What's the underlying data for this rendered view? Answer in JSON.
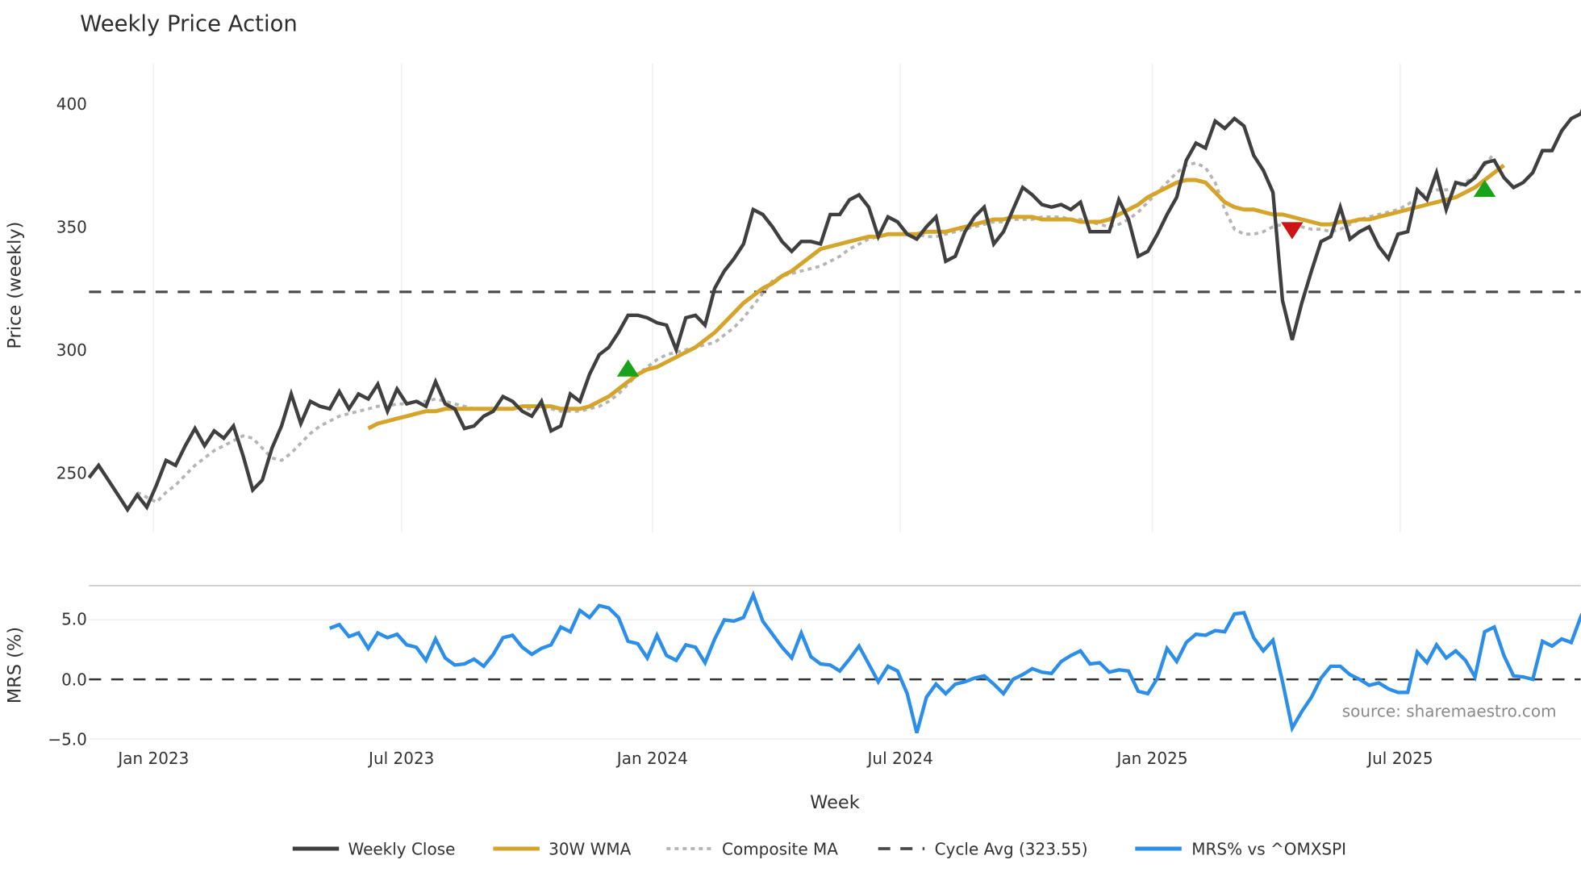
{
  "chart_data": [
    {
      "type": "line",
      "title": "Weekly Price Action",
      "xlabel": "Week",
      "ylabel": "Price (weekly)",
      "ylim": [
        222,
        417
      ],
      "yticks": [
        250,
        300,
        350,
        400
      ],
      "xticks": [
        "Jan 2023",
        "Jul 2023",
        "Jan 2024",
        "Jul 2024",
        "Jan 2025",
        "Jul 2025"
      ],
      "grid": "vertical",
      "series": [
        {
          "name": "Weekly Close",
          "color": "#3f3f3f",
          "style": "solid",
          "values": [
            248,
            253,
            247,
            241,
            235,
            241,
            236,
            245,
            255,
            253,
            261,
            268,
            261,
            267,
            264,
            269,
            257,
            243,
            247,
            260,
            269,
            282,
            270,
            279,
            277,
            276,
            283,
            276,
            282,
            280,
            286,
            275,
            284,
            278,
            279,
            277,
            287,
            278,
            276,
            268,
            269,
            273,
            275,
            281,
            279,
            275,
            273,
            279,
            267,
            269,
            282,
            279,
            290,
            298,
            301,
            307,
            314,
            314,
            313,
            311,
            310,
            300,
            313,
            314,
            310,
            325,
            332,
            337,
            343,
            357,
            355,
            350,
            344,
            340,
            344,
            344,
            343,
            355,
            355,
            361,
            363,
            358,
            346,
            354,
            352,
            347,
            345,
            350,
            354,
            336,
            338,
            348,
            354,
            358,
            343,
            348,
            357,
            366,
            363,
            359,
            358,
            359,
            357,
            360,
            348,
            348,
            348,
            361,
            353,
            338,
            340,
            347,
            355,
            362,
            377,
            384,
            382,
            393,
            390,
            394,
            391,
            379,
            373,
            364,
            320,
            304,
            319,
            332,
            344,
            346,
            358,
            345,
            348,
            350,
            342,
            337,
            347,
            348,
            365,
            361,
            372,
            357,
            368,
            367,
            370,
            376,
            377,
            370,
            366,
            368,
            372,
            381,
            381,
            389,
            394,
            396,
            406
          ]
        },
        {
          "name": "30W WMA",
          "color": "#d4a52a",
          "style": "solid",
          "start_index": 29,
          "values": [
            268,
            270,
            271,
            272,
            273,
            274,
            275,
            275,
            276,
            276,
            276,
            276,
            276,
            276,
            276,
            276,
            277,
            277,
            277,
            277,
            276,
            276,
            276,
            277,
            279,
            281,
            284,
            287,
            290,
            292,
            293,
            295,
            297,
            299,
            301,
            304,
            307,
            311,
            315,
            319,
            322,
            325,
            327,
            330,
            332,
            335,
            338,
            341,
            342,
            343,
            344,
            345,
            346,
            346,
            347,
            347,
            347,
            347,
            348,
            348,
            348,
            349,
            350,
            351,
            352,
            353,
            353,
            354,
            354,
            354,
            353,
            353,
            353,
            353,
            352,
            352,
            352,
            353,
            355,
            357,
            359,
            362,
            364,
            366,
            368,
            369,
            369,
            368,
            364,
            360,
            358,
            357,
            357,
            356,
            355,
            355,
            354,
            353,
            352,
            351,
            351,
            352,
            352,
            353,
            353,
            354,
            355,
            356,
            357,
            358,
            359,
            360,
            361,
            362,
            364,
            366,
            369,
            372,
            375
          ]
        },
        {
          "name": "Composite MA",
          "color": "#b5b5b5",
          "style": "dotted",
          "start_index": 5,
          "values": [
            242,
            240,
            238,
            242,
            245,
            249,
            253,
            256,
            259,
            261,
            263,
            265,
            264,
            260,
            256,
            255,
            258,
            262,
            266,
            269,
            271,
            273,
            274,
            275,
            276,
            277,
            277,
            278,
            278,
            279,
            279,
            280,
            279,
            278,
            277,
            276,
            276,
            276,
            276,
            276,
            276,
            276,
            276,
            276,
            275,
            275,
            275,
            276,
            277,
            279,
            282,
            286,
            290,
            293,
            296,
            298,
            299,
            300,
            301,
            302,
            303,
            306,
            309,
            313,
            318,
            323,
            328,
            330,
            331,
            332,
            333,
            334,
            336,
            338,
            341,
            343,
            345,
            346,
            347,
            347,
            347,
            347,
            346,
            346,
            347,
            348,
            349,
            350,
            351,
            352,
            352,
            353,
            353,
            353,
            354,
            354,
            354,
            353,
            353,
            352,
            351,
            350,
            351,
            353,
            356,
            360,
            364,
            368,
            372,
            375,
            376,
            374,
            368,
            357,
            349,
            347,
            347,
            348,
            350,
            351,
            350,
            350,
            349,
            349,
            348,
            349,
            351,
            353,
            354,
            355,
            356,
            357,
            359,
            362,
            364,
            365,
            365,
            366,
            368,
            371,
            375,
            380
          ]
        },
        {
          "name": "Cycle Avg (323.55)",
          "color": "#4a4a4a",
          "style": "dashed",
          "value": 323.55
        }
      ],
      "annotations": [
        {
          "type": "buy-marker",
          "shape": "triangle-up",
          "color": "#1aa31a",
          "index": 56,
          "price": 292
        },
        {
          "type": "sell-marker",
          "shape": "triangle-down",
          "color": "#cc1414",
          "index": 125,
          "price": 349
        },
        {
          "type": "buy-marker",
          "shape": "triangle-up",
          "color": "#1aa31a",
          "index": 145,
          "price": 365
        }
      ]
    },
    {
      "type": "line",
      "title": "",
      "xlabel": "Week",
      "ylabel": "MRS (%)",
      "ylim": [
        -5.0,
        7.8
      ],
      "yticks": [
        -5.0,
        0.0,
        5.0
      ],
      "series": [
        {
          "name": "MRS% vs ^OMXSPI",
          "color": "#2b8ee8",
          "style": "solid",
          "start_index": 25,
          "values": [
            4.3,
            4.6,
            3.6,
            3.9,
            2.6,
            3.9,
            3.5,
            3.8,
            2.9,
            2.7,
            1.6,
            3.4,
            1.8,
            1.2,
            1.3,
            1.7,
            1.1,
            2.1,
            3.5,
            3.7,
            2.7,
            2.1,
            2.6,
            2.9,
            4.4,
            4.0,
            5.8,
            5.2,
            6.2,
            6.0,
            5.2,
            3.2,
            3.0,
            1.8,
            3.7,
            2.0,
            1.6,
            2.9,
            2.7,
            1.4,
            3.4,
            5.0,
            4.9,
            5.2,
            7.1,
            4.9,
            3.8,
            2.7,
            1.8,
            3.9,
            1.9,
            1.3,
            1.2,
            0.7,
            1.7,
            2.8,
            1.3,
            -0.2,
            1.1,
            0.7,
            -1.2,
            -4.5,
            -1.5,
            -0.4,
            -1.2,
            -0.4,
            -0.2,
            0.1,
            0.3,
            -0.4,
            -1.2,
            0.0,
            0.4,
            0.9,
            0.6,
            0.5,
            1.5,
            2.0,
            2.4,
            1.3,
            1.4,
            0.6,
            0.8,
            0.7,
            -1.0,
            -1.2,
            0.1,
            2.6,
            1.5,
            3.1,
            3.8,
            3.7,
            4.1,
            4.0,
            5.5,
            5.6,
            3.5,
            2.4,
            3.3,
            -0.2,
            -4.1,
            -2.7,
            -1.5,
            0.1,
            1.1,
            1.1,
            0.4,
            0.0,
            -0.5,
            -0.3,
            -0.8,
            -1.1,
            -1.1,
            2.3,
            1.4,
            2.9,
            1.8,
            2.4,
            1.6,
            0.2,
            4.0,
            4.4,
            2.0,
            0.3,
            0.2,
            0.0,
            3.2,
            2.8,
            3.4,
            3.1,
            5.3,
            6.8
          ]
        },
        {
          "name": "Zero line",
          "color": "#333333",
          "style": "dashed",
          "value": 0.0
        }
      ]
    }
  ],
  "header": {
    "title": "Weekly Price Action"
  },
  "price_panel": {
    "y_axis_title": "Price (weekly)",
    "y_ticks": [
      "250",
      "300",
      "350",
      "400"
    ]
  },
  "mrs_panel": {
    "y_axis_title": "MRS (%)",
    "y_ticks": [
      "−5.0",
      "0.0",
      "5.0"
    ],
    "source": "source: sharemaestro.com"
  },
  "x_axis": {
    "title": "Week",
    "ticks": [
      "Jan 2023",
      "Jul 2023",
      "Jan 2024",
      "Jul 2024",
      "Jan 2025",
      "Jul 2025"
    ]
  },
  "legend": {
    "items": [
      {
        "label": "Weekly Close",
        "color": "#3f3f3f",
        "style": "solid"
      },
      {
        "label": "30W WMA",
        "color": "#d4a52a",
        "style": "solid"
      },
      {
        "label": "Composite MA",
        "color": "#b5b5b5",
        "style": "dotted"
      },
      {
        "label": "Cycle Avg (323.55)",
        "color": "#4a4a4a",
        "style": "dashed"
      },
      {
        "label": "MRS% vs ^OMXSPI",
        "color": "#2b8ee8",
        "style": "solid"
      }
    ]
  }
}
